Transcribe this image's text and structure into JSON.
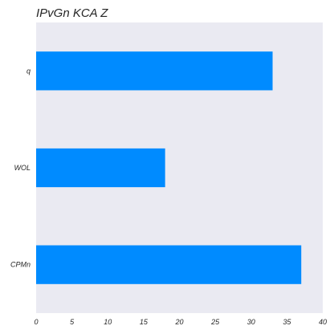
{
  "chart_data": {
    "type": "bar",
    "orientation": "horizontal",
    "title": "IPvGn KCA Z",
    "xlabel": "",
    "ylabel": "",
    "categories": [
      "q",
      "WOL",
      "CPMn"
    ],
    "values": [
      33,
      18,
      37
    ],
    "xlim": [
      0,
      40
    ],
    "xticks": [
      0,
      5,
      10,
      15,
      20,
      25,
      30,
      35,
      40
    ],
    "grid": false,
    "legend": "none",
    "colors": {
      "bar": "#008bff",
      "plot_background": "#eaeaf2"
    }
  }
}
